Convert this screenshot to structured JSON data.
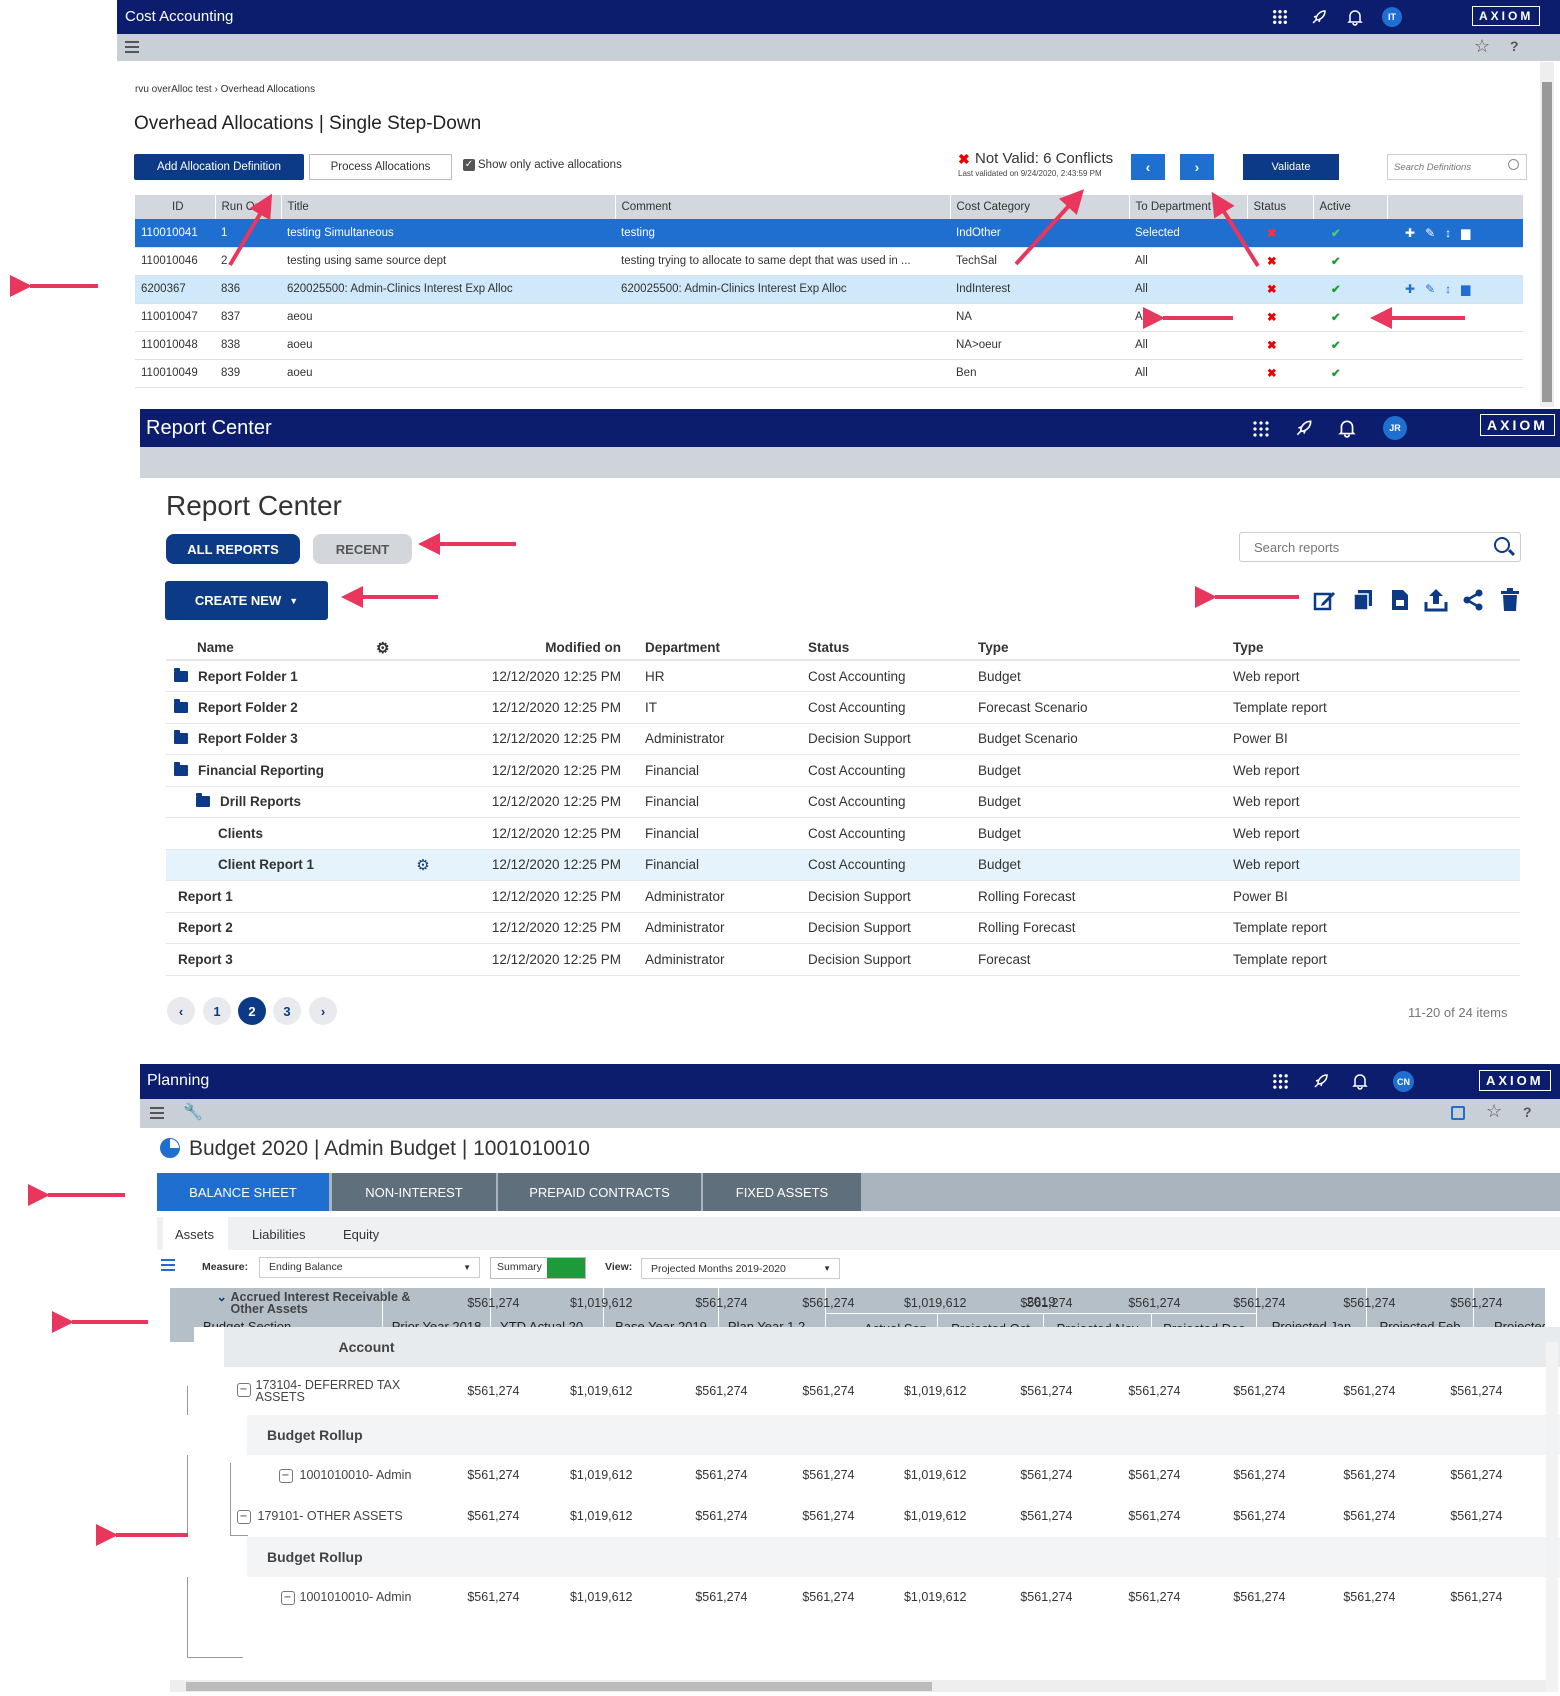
{
  "cost_accounting": {
    "app_title": "Cost Accounting",
    "user_initials": "IT",
    "brand": "AXIOM",
    "breadcrumb": [
      "rvu overAlloc test",
      "Overhead Allocations"
    ],
    "breadcrumb_sep": "›",
    "page_title": "Overhead Allocations | Single Step-Down",
    "add_button": "Add Allocation Definition",
    "process_button": "Process Allocations",
    "show_active_label": "Show only active allocations",
    "validation_status": "Not Valid: 6 Conflicts",
    "validation_time": "Last validated on 9/24/2020, 2:43:59 PM",
    "validate_button": "Validate",
    "search_placeholder": "Search Definitions",
    "columns": [
      "ID",
      "Run Or...",
      "Title",
      "Comment",
      "Cost Category",
      "To Department",
      "Status",
      "Active"
    ],
    "rows": [
      {
        "id": "110010041",
        "run": "1",
        "title": "testing Simultaneous",
        "comment": "testing",
        "category": "IndOther",
        "dept": "Selected"
      },
      {
        "id": "110010046",
        "run": "2",
        "title": "testing using same source dept",
        "comment": "testing trying to allocate to same dept that was used in ...",
        "category": "TechSal",
        "dept": "All"
      },
      {
        "id": "6200367",
        "run": "836",
        "title": "620025500: Admin-Clinics Interest Exp Alloc",
        "comment": "620025500: Admin-Clinics Interest Exp Alloc",
        "category": "IndInterest",
        "dept": "All"
      },
      {
        "id": "110010047",
        "run": "837",
        "title": "aeou",
        "comment": "",
        "category": "NA",
        "dept": "All"
      },
      {
        "id": "110010048",
        "run": "838",
        "title": "aoeu",
        "comment": "",
        "category": "NA>oeur",
        "dept": "All"
      },
      {
        "id": "110010049",
        "run": "839",
        "title": "aoeu",
        "comment": "",
        "category": "Ben",
        "dept": "All"
      }
    ],
    "colors": {
      "header": "#0c1d6e",
      "selected_row": "#1f6fd1",
      "hover_row": "#cfe8fa",
      "status_invalid": "#e00000",
      "active_ok": "#1d9a3a"
    }
  },
  "report_center": {
    "app_title": "Report Center",
    "user_initials": "JR",
    "brand": "AXIOM",
    "page_title": "Report Center",
    "tab_all": "ALL REPORTS",
    "tab_recent": "RECENT",
    "search_placeholder": "Search reports",
    "create_button": "CREATE NEW",
    "toolbar_icons": [
      "edit-icon",
      "copy-icon",
      "document-icon",
      "upload-icon",
      "share-icon",
      "trash-icon"
    ],
    "columns": [
      "Name",
      "Modified on",
      "Department",
      "Status",
      "Type",
      "Type"
    ],
    "rows": [
      {
        "name": "Report Folder 1",
        "modified": "12/12/2020 12:25 PM",
        "dept": "HR",
        "status": "Cost Accounting",
        "type1": "Budget",
        "type2": "Web report"
      },
      {
        "name": "Report Folder 2",
        "modified": "12/12/2020 12:25 PM",
        "dept": "IT",
        "status": "Cost Accounting",
        "type1": "Forecast Scenario",
        "type2": "Template report"
      },
      {
        "name": "Report Folder 3",
        "modified": "12/12/2020 12:25 PM",
        "dept": "Administrator",
        "status": "Decision Support",
        "type1": "Budget Scenario",
        "type2": "Power BI"
      },
      {
        "name": "Financial Reporting",
        "modified": "12/12/2020 12:25 PM",
        "dept": "Financial",
        "status": "Cost Accounting",
        "type1": "Budget",
        "type2": "Web report"
      },
      {
        "name": "Drill Reports",
        "modified": "12/12/2020 12:25 PM",
        "dept": "Financial",
        "status": "Cost Accounting",
        "type1": "Budget",
        "type2": "Web report"
      },
      {
        "name": "Clients",
        "modified": "12/12/2020 12:25 PM",
        "dept": "Financial",
        "status": "Cost Accounting",
        "type1": "Budget",
        "type2": "Web report"
      },
      {
        "name": "Client Report 1",
        "modified": "12/12/2020 12:25 PM",
        "dept": "Financial",
        "status": "Cost Accounting",
        "type1": "Budget",
        "type2": "Web report"
      },
      {
        "name": "Report 1",
        "modified": "12/12/2020 12:25 PM",
        "dept": "Administrator",
        "status": "Decision Support",
        "type1": "Rolling Forecast",
        "type2": "Power BI"
      },
      {
        "name": "Report 2",
        "modified": "12/12/2020 12:25 PM",
        "dept": "Administrator",
        "status": "Decision Support",
        "type1": "Rolling Forecast",
        "type2": "Template report"
      },
      {
        "name": "Report 3",
        "modified": "12/12/2020 12:25 PM",
        "dept": "Administrator",
        "status": "Decision Support",
        "type1": "Forecast",
        "type2": "Template report"
      }
    ],
    "pages": [
      "1",
      "2",
      "3"
    ],
    "current_page": "2",
    "items_info": "11-20 of 24 items"
  },
  "planning": {
    "app_title": "Planning",
    "user_initials": "CN",
    "brand": "AXIOM",
    "page_title": "Budget 2020 | Admin Budget | 1001010010",
    "tabs": [
      "BALANCE SHEET",
      "NON-INTEREST",
      "PREPAID CONTRACTS",
      "FIXED ASSETS"
    ],
    "subtabs": [
      "Assets",
      "Liabilities",
      "Equity"
    ],
    "measure_label": "Measure:",
    "measure_value": "Ending Balance",
    "summary_label": "Summary",
    "view_label": "View:",
    "view_value": "Projected Months 2019-2020",
    "year_group": "2019",
    "columns": [
      "Budget Section",
      "Prior Year 2018",
      "YTD Actual 20...",
      "Base Year 2019",
      "Plan Year 1 2...",
      "Actual Sep",
      "Projected Oct",
      "Projected Nov",
      "Projected Dec",
      "Projected Jan",
      "Projected Feb",
      "Projected"
    ],
    "values_a": [
      "$561,274",
      "$1,019,612",
      "$561,274",
      "$561,274",
      "$1,019,612",
      "$561,274",
      "$561,274",
      "$561,274",
      "$561,274",
      "$561,274"
    ],
    "rows": [
      {
        "label": "Accrued Interest Receivable & Other Assets"
      },
      {
        "label": "Account"
      },
      {
        "label": "173104- DEFERRED TAX ASSETS"
      },
      {
        "label": "Budget Rollup"
      },
      {
        "label": "1001010010- Admin"
      },
      {
        "label": "179101- OTHER ASSETS"
      },
      {
        "label": "Budget Rollup"
      },
      {
        "label": "1001010010- Admin"
      }
    ]
  }
}
